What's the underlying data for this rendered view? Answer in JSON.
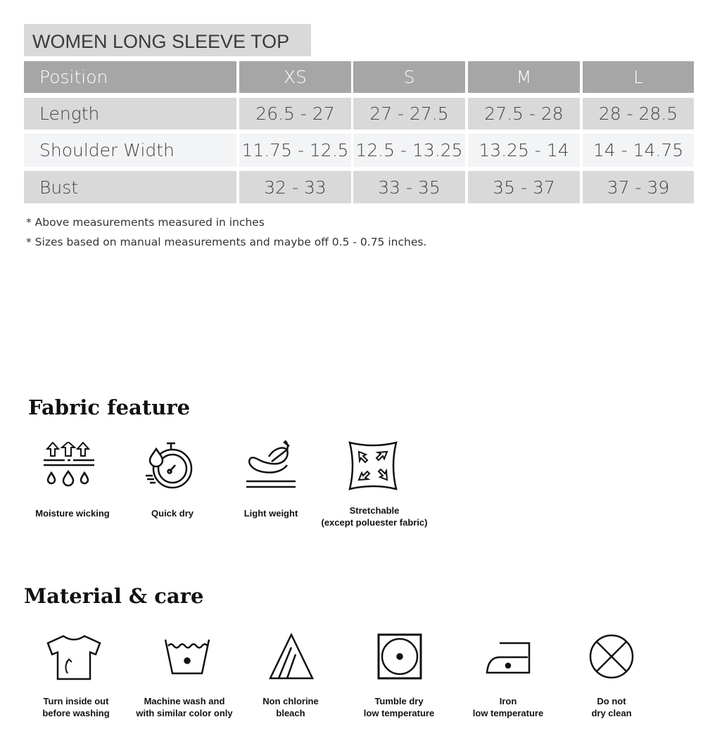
{
  "title": "WOMEN LONG SLEEVE TOP",
  "table": {
    "headers": [
      "Position",
      "XS",
      "S",
      "M",
      "L"
    ],
    "rows": [
      [
        "Length",
        "26.5 - 27",
        "27 - 27.5",
        "27.5 - 28",
        "28 - 28.5"
      ],
      [
        "Shoulder Width",
        "11.75 - 12.5",
        "12.5 - 13.25",
        "13.25 - 14",
        "14 - 14.75"
      ],
      [
        "Bust",
        "32 - 33",
        "33 - 35",
        "35 - 37",
        "37 - 39"
      ]
    ]
  },
  "notes": [
    "* Above measurements measured in inches",
    "* Sizes based on manual measurements and maybe off 0.5 - 0.75 inches."
  ],
  "fabric": {
    "heading": "Fabric feature",
    "items": [
      {
        "icon": "moisture-wicking-icon",
        "line1": "Moisture wicking",
        "line2": ""
      },
      {
        "icon": "stopwatch-drop-icon",
        "line1": "Quick dry",
        "line2": ""
      },
      {
        "icon": "feather-icon",
        "line1": "Light weight",
        "line2": ""
      },
      {
        "icon": "stretch-icon",
        "line1": "Stretchable",
        "line2": "(except poluester fabric)"
      }
    ]
  },
  "care": {
    "heading": "Material & care",
    "items": [
      {
        "icon": "shirt-inside-out-icon",
        "line1": "Turn inside out",
        "line2": "before washing"
      },
      {
        "icon": "wash-tub-icon",
        "line1": "Machine wash and",
        "line2": "with similar color only"
      },
      {
        "icon": "bleach-triangle-icon",
        "line1": "Non chlorine",
        "line2": "bleach"
      },
      {
        "icon": "tumble-dry-icon",
        "line1": "Tumble dry",
        "line2": "low temperature"
      },
      {
        "icon": "iron-icon",
        "line1": "Iron",
        "line2": "low temperature"
      },
      {
        "icon": "no-dry-clean-icon",
        "line1": "Do not",
        "line2": "dry clean"
      }
    ]
  }
}
